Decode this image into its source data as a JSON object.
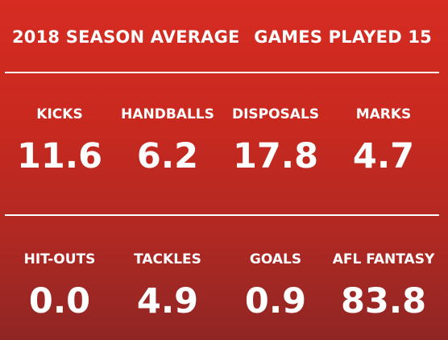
{
  "header": {
    "season_title": "2018 SEASON AVERAGE",
    "games_played": "GAMES PLAYED 15"
  },
  "stats_row_1": [
    {
      "label": "KICKS",
      "value": "11.6"
    },
    {
      "label": "HANDBALLS",
      "value": "6.2"
    },
    {
      "label": "DISPOSALS",
      "value": "17.8"
    },
    {
      "label": "MARKS",
      "value": "4.7"
    }
  ],
  "stats_row_2": [
    {
      "label": "HIT-OUTS",
      "value": "0.0"
    },
    {
      "label": "TACKLES",
      "value": "4.9"
    },
    {
      "label": "GOALS",
      "value": "0.9"
    },
    {
      "label": "AFL FANTASY",
      "value": "83.8"
    }
  ],
  "colors": {
    "background_top": "#d62c22",
    "background_bottom": "#8f2624",
    "text": "#ffffff"
  }
}
